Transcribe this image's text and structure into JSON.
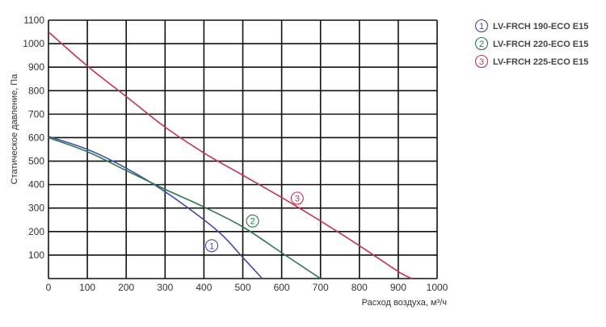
{
  "chart_data": {
    "type": "line",
    "title": "",
    "xlabel": "Расход воздуха, м³/ч",
    "ylabel": "Статическое давление, Па",
    "xlim": [
      0,
      1000
    ],
    "ylim": [
      0,
      1100
    ],
    "x_ticks": [
      0,
      100,
      200,
      300,
      400,
      500,
      600,
      700,
      800,
      900,
      1000
    ],
    "y_ticks": [
      100,
      200,
      300,
      400,
      500,
      600,
      700,
      800,
      900,
      1000,
      1100
    ],
    "grid": true,
    "legend_position": "top-right",
    "series": [
      {
        "name": "LV-FRCH 190-ECO E15",
        "marker": "1",
        "color": "#3f4fa0",
        "marker_at": [
          420,
          140
        ],
        "points": [
          [
            0,
            605
          ],
          [
            100,
            550
          ],
          [
            200,
            470
          ],
          [
            300,
            370
          ],
          [
            400,
            250
          ],
          [
            450,
            180
          ],
          [
            500,
            90
          ],
          [
            550,
            0
          ]
        ]
      },
      {
        "name": "LV-FRCH 220-ECO E15",
        "marker": "2",
        "color": "#2a7a4c",
        "marker_at": [
          525,
          245
        ],
        "points": [
          [
            0,
            600
          ],
          [
            100,
            540
          ],
          [
            200,
            460
          ],
          [
            300,
            380
          ],
          [
            400,
            305
          ],
          [
            500,
            220
          ],
          [
            600,
            110
          ],
          [
            700,
            0
          ]
        ]
      },
      {
        "name": "LV-FRCH 225-ECO E15",
        "marker": "3",
        "color": "#c0364f",
        "marker_at": [
          640,
          342
        ],
        "points": [
          [
            0,
            1050
          ],
          [
            100,
            905
          ],
          [
            200,
            775
          ],
          [
            300,
            645
          ],
          [
            400,
            535
          ],
          [
            500,
            440
          ],
          [
            600,
            345
          ],
          [
            700,
            245
          ],
          [
            800,
            140
          ],
          [
            900,
            30
          ],
          [
            935,
            0
          ]
        ]
      }
    ]
  }
}
